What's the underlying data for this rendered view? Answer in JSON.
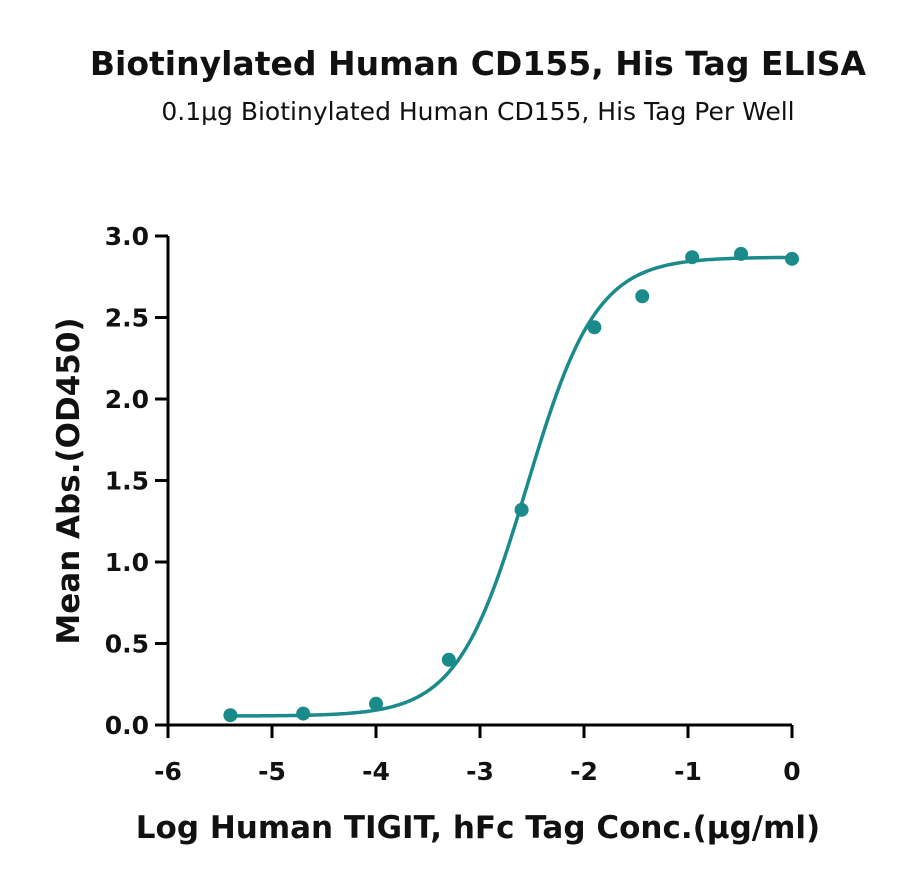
{
  "chart_data": {
    "type": "scatter",
    "title": "Biotinylated Human CD155, His Tag ELISA",
    "subtitle": "0.1μg Biotinylated Human CD155, His Tag Per Well",
    "xlabel": "Log Human TIGIT, hFc Tag Conc.(μg/ml)",
    "ylabel": "Mean Abs.(OD450)",
    "xlim": [
      -6,
      0
    ],
    "ylim": [
      0,
      3.0
    ],
    "x_ticks": [
      -6,
      -5,
      -4,
      -3,
      -2,
      -1,
      0
    ],
    "x_tick_labels": [
      "-6",
      "-5",
      "-4",
      "-3",
      "-2",
      "-1",
      "0"
    ],
    "y_ticks": [
      0,
      0.5,
      1.0,
      1.5,
      2.0,
      2.5,
      3.0
    ],
    "y_tick_labels": [
      "0.0",
      "0.5",
      "1.0",
      "1.5",
      "2.0",
      "2.5",
      "3.0"
    ],
    "grid": false,
    "color": "#1a8a8a",
    "series": [
      {
        "x": [
          -5.4,
          -4.7,
          -4.0,
          -3.3,
          -2.6,
          -1.9,
          -1.44,
          -0.96,
          -0.49,
          0.0
        ],
        "y": [
          0.06,
          0.07,
          0.13,
          0.4,
          1.32,
          2.44,
          2.63,
          2.87,
          2.89,
          2.86
        ]
      }
    ],
    "fit": {
      "type": "4PL",
      "bottom": 0.055,
      "top": 2.87,
      "log_ec50": -2.55,
      "hill_slope": 1.3
    }
  }
}
